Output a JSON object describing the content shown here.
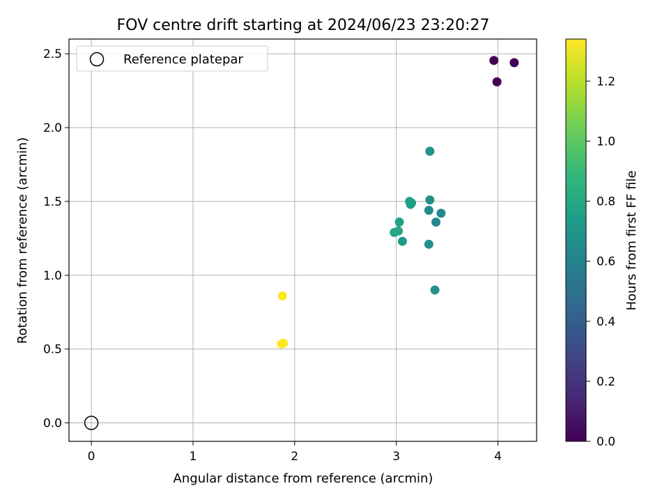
{
  "chart_data": {
    "type": "scatter",
    "title": "FOV centre drift starting at 2024/06/23 23:20:27",
    "xlabel": "Angular distance from reference (arcmin)",
    "ylabel": "Rotation from reference (arcmin)",
    "xlim": [
      -0.22,
      4.38
    ],
    "ylim": [
      -0.125,
      2.6
    ],
    "xticks": [
      0,
      1,
      2,
      3,
      4
    ],
    "xtick_labels": [
      "0",
      "1",
      "2",
      "3",
      "4"
    ],
    "yticks": [
      0.0,
      0.5,
      1.0,
      1.5,
      2.0,
      2.5
    ],
    "ytick_labels": [
      "0.0",
      "0.5",
      "1.0",
      "1.5",
      "2.0",
      "2.5"
    ],
    "grid": true,
    "legend": {
      "position": "top-left",
      "entries": [
        {
          "label": "Reference platepar",
          "marker": "open-circle",
          "color": "#000000"
        }
      ]
    },
    "reference_point": {
      "x": 0.0,
      "y": 0.0
    },
    "colorbar": {
      "label": "Hours from first FF file",
      "range": [
        0.0,
        1.34
      ],
      "ticks": [
        0.0,
        0.2,
        0.4,
        0.6,
        0.8,
        1.0,
        1.2
      ],
      "tick_labels": [
        "0.0",
        "0.2",
        "0.4",
        "0.6",
        "0.8",
        "1.0",
        "1.2"
      ],
      "colormap": [
        "#440154",
        "#482878",
        "#3e4989",
        "#31688e",
        "#26828e",
        "#1f9e89",
        "#35b779",
        "#6ece58",
        "#b5de2b",
        "#fde725"
      ]
    },
    "points": [
      {
        "x": 3.96,
        "y": 2.455,
        "c": 0.0
      },
      {
        "x": 4.16,
        "y": 2.44,
        "c": 0.0
      },
      {
        "x": 3.99,
        "y": 2.31,
        "c": 0.0
      },
      {
        "x": 3.33,
        "y": 1.84,
        "c": 0.68
      },
      {
        "x": 3.13,
        "y": 1.5,
        "c": 0.74
      },
      {
        "x": 3.15,
        "y": 1.49,
        "c": 0.74
      },
      {
        "x": 3.14,
        "y": 1.48,
        "c": 0.75
      },
      {
        "x": 3.33,
        "y": 1.51,
        "c": 0.66
      },
      {
        "x": 3.32,
        "y": 1.44,
        "c": 0.65
      },
      {
        "x": 3.44,
        "y": 1.42,
        "c": 0.63
      },
      {
        "x": 3.39,
        "y": 1.36,
        "c": 0.62
      },
      {
        "x": 3.03,
        "y": 1.36,
        "c": 0.77
      },
      {
        "x": 3.02,
        "y": 1.3,
        "c": 0.79
      },
      {
        "x": 2.98,
        "y": 1.29,
        "c": 0.8
      },
      {
        "x": 3.06,
        "y": 1.23,
        "c": 0.72
      },
      {
        "x": 3.32,
        "y": 1.21,
        "c": 0.66
      },
      {
        "x": 3.38,
        "y": 0.9,
        "c": 0.67
      },
      {
        "x": 1.88,
        "y": 0.86,
        "c": 1.34
      },
      {
        "x": 1.87,
        "y": 0.535,
        "c": 1.34
      },
      {
        "x": 1.89,
        "y": 0.54,
        "c": 1.34
      }
    ]
  }
}
